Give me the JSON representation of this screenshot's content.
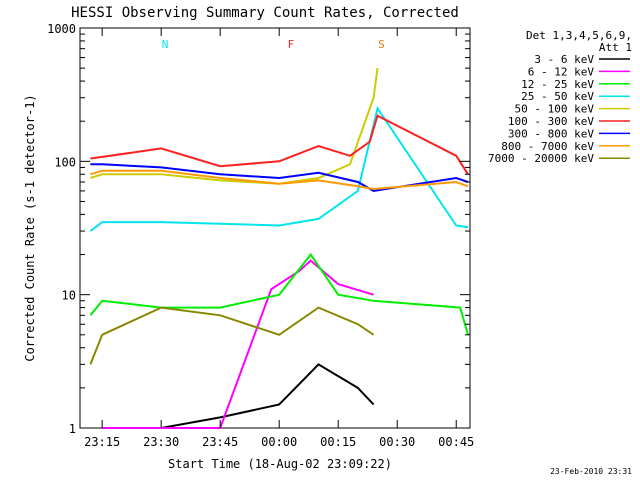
{
  "chart_data": {
    "type": "line",
    "title": "HESSI Observing Summary Count Rates, Corrected",
    "xlabel": "Start Time (18-Aug-02 23:09:22)",
    "ylabel": "Corrected Count Rate (s-1 detector-1)",
    "y_scale": "log",
    "ylim": [
      1,
      1000
    ],
    "xlim": [
      "23:09:22",
      "00:48:30"
    ],
    "grid": false,
    "legend_position": "top-right",
    "y_tick_labels": [
      "1",
      "10",
      "100",
      "1000"
    ],
    "x_tick_labels": [
      "23:15",
      "23:30",
      "23:45",
      "00:00",
      "00:15",
      "00:30",
      "00:45"
    ],
    "legend_title_1": "Det 1,3,4,5,6,9,",
    "legend_title_2": "Att 1",
    "footer_date": "23-Feb-2010 23:31",
    "annotations": [
      {
        "text": "N",
        "x": "23:31",
        "color": "#00e5ee"
      },
      {
        "text": "F",
        "x": "00:03",
        "color": "#ff2020"
      },
      {
        "text": "S",
        "x": "00:26",
        "color": "#ee7700"
      }
    ],
    "series": [
      {
        "name": "3 - 6 keV",
        "color": "#000000",
        "x": [
          "23:15",
          "23:30",
          "23:45",
          "00:00",
          "00:10",
          "00:20",
          "00:24"
        ],
        "values": [
          1,
          1,
          1.2,
          1.5,
          3,
          2,
          1.5
        ]
      },
      {
        "name": "6 - 12 keV",
        "color": "#ff00ff",
        "x": [
          "23:15",
          "23:30",
          "23:45",
          "23:58",
          "00:05",
          "00:08",
          "00:15",
          "00:24"
        ],
        "values": [
          1,
          1,
          1,
          11,
          15,
          18,
          12,
          10
        ]
      },
      {
        "name": "12 - 25 keV",
        "color": "#00ee00",
        "x": [
          "23:12",
          "23:15",
          "23:30",
          "23:45",
          "00:00",
          "00:08",
          "00:15",
          "00:24",
          "00:46",
          "00:48"
        ],
        "values": [
          7,
          9,
          8,
          8,
          10,
          20,
          10,
          9,
          8,
          5
        ]
      },
      {
        "name": "25 - 50 keV",
        "color": "#00e5ee",
        "x": [
          "23:12",
          "23:15",
          "23:30",
          "23:45",
          "00:00",
          "00:10",
          "00:20",
          "00:25",
          "00:45",
          "00:48"
        ],
        "values": [
          30,
          35,
          35,
          34,
          33,
          37,
          60,
          250,
          33,
          32
        ]
      },
      {
        "name": "50 - 100 keV",
        "color": "#cccc00",
        "x": [
          "23:12",
          "23:15",
          "23:30",
          "23:45",
          "00:00",
          "00:10",
          "00:18",
          "00:24",
          "00:25"
        ],
        "values": [
          75,
          80,
          80,
          72,
          68,
          75,
          95,
          300,
          500
        ]
      },
      {
        "name": "100 - 300 keV",
        "color": "#ff2020",
        "x": [
          "23:12",
          "23:15",
          "23:30",
          "23:45",
          "00:00",
          "00:10",
          "00:18",
          "00:23",
          "00:25",
          "00:45",
          "00:48"
        ],
        "values": [
          105,
          108,
          125,
          92,
          100,
          130,
          110,
          140,
          220,
          110,
          80
        ]
      },
      {
        "name": "300 - 800 keV",
        "color": "#0000ff",
        "x": [
          "23:12",
          "23:15",
          "23:30",
          "23:45",
          "00:00",
          "00:10",
          "00:20",
          "00:24",
          "00:45",
          "00:48"
        ],
        "values": [
          95,
          95,
          90,
          80,
          75,
          82,
          70,
          60,
          75,
          70
        ]
      },
      {
        "name": "800 - 7000 keV",
        "color": "#ff9900",
        "x": [
          "23:12",
          "23:15",
          "23:30",
          "23:45",
          "00:00",
          "00:10",
          "00:20",
          "00:24",
          "00:45",
          "00:48"
        ],
        "values": [
          80,
          85,
          85,
          75,
          68,
          72,
          65,
          62,
          70,
          65
        ]
      },
      {
        "name": "7000 - 20000 keV",
        "color": "#888800",
        "x": [
          "23:12",
          "23:15",
          "23:30",
          "23:45",
          "00:00",
          "00:10",
          "00:20",
          "00:24"
        ],
        "values": [
          3,
          5,
          8,
          7,
          5,
          8,
          6,
          5
        ]
      }
    ]
  }
}
